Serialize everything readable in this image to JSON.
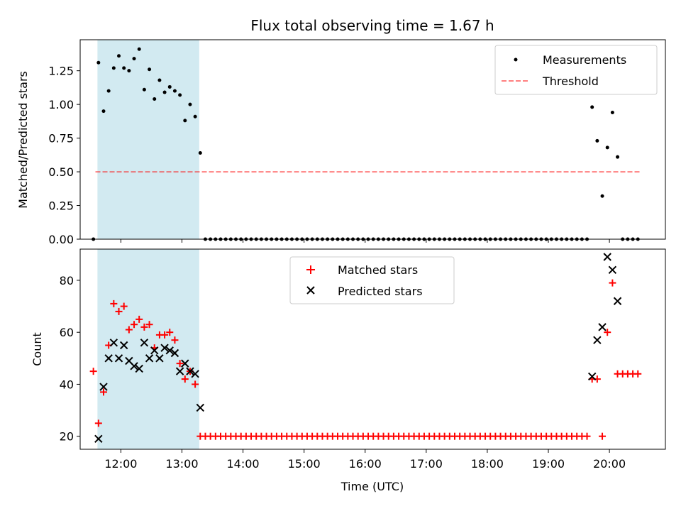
{
  "chart_data": {
    "type": "scatter",
    "title": "Flux total observing time = 1.67 h",
    "xlabel": "Time (UTC)",
    "x_unit": "hours UTC",
    "xlim": [
      "11:20",
      "20:55"
    ],
    "xticks": [
      "12:00",
      "13:00",
      "14:00",
      "15:00",
      "16:00",
      "17:00",
      "18:00",
      "19:00",
      "20:00"
    ],
    "shaded_interval": {
      "start": "11:37",
      "end": "13:17",
      "color": "#add8e6"
    },
    "panels": [
      {
        "name": "ratio",
        "ylabel": "Matched/Predicted stars",
        "ylim": [
          0,
          1.48
        ],
        "yticks": [
          "0.00",
          "0.25",
          "0.50",
          "0.75",
          "1.00",
          "1.25"
        ],
        "legend_position": "upper right",
        "legend": [
          "Measurements",
          "Threshold"
        ],
        "threshold": {
          "name": "Threshold",
          "value": 0.5,
          "x_range": [
            "11:35",
            "20:30"
          ],
          "color": "#ff0000",
          "style": "dashed"
        },
        "measurements": {
          "name": "Measurements",
          "color": "#000000",
          "x": [
            "11:33",
            "11:38",
            "11:43",
            "11:48",
            "11:53",
            "11:58",
            "12:03",
            "12:08",
            "12:13",
            "12:18",
            "12:23",
            "12:28",
            "12:33",
            "12:38",
            "12:43",
            "12:48",
            "12:53",
            "12:58",
            "13:03",
            "13:08",
            "13:13",
            "19:43",
            "19:48",
            "19:53",
            "19:58",
            "20:03",
            "20:08",
            "20:13",
            "20:18",
            "20:23",
            "20:28"
          ],
          "y": [
            0.0,
            1.31,
            0.95,
            1.1,
            1.27,
            1.36,
            1.27,
            1.25,
            1.34,
            1.41,
            1.11,
            1.26,
            1.04,
            1.18,
            1.09,
            1.13,
            1.1,
            1.07,
            0.88,
            1.0,
            0.91,
            0.98,
            0.73,
            0.32,
            0.68,
            0.94,
            0.61,
            0.0,
            0.0,
            0.0,
            0.0
          ],
          "extra_point": {
            "x": "13:18",
            "y": 0.64
          },
          "zero_run": {
            "from": "13:23",
            "to": "19:38",
            "step_minutes": 5,
            "y": 0.0
          }
        }
      },
      {
        "name": "counts",
        "ylabel": "Count",
        "ylim": [
          15,
          92
        ],
        "yticks": [
          "20",
          "40",
          "60",
          "80"
        ],
        "legend_position": "upper center",
        "legend": [
          "Matched stars",
          "Predicted stars"
        ],
        "series": [
          {
            "name": "Matched stars",
            "marker": "+",
            "color": "#ff0000",
            "x": [
              "11:33",
              "11:38",
              "11:43",
              "11:48",
              "11:53",
              "11:58",
              "12:03",
              "12:08",
              "12:13",
              "12:18",
              "12:23",
              "12:28",
              "12:33",
              "12:38",
              "12:43",
              "12:48",
              "12:53",
              "12:58",
              "13:03",
              "13:08",
              "13:13",
              "13:18",
              "19:43",
              "19:48",
              "19:53",
              "19:58",
              "20:03",
              "20:08",
              "20:13",
              "20:18",
              "20:23",
              "20:28"
            ],
            "y": [
              45,
              25,
              37,
              55,
              71,
              68,
              70,
              61,
              63,
              65,
              62,
              63,
              54,
              59,
              59,
              60,
              57,
              48,
              42,
              45,
              40,
              20,
              42,
              42,
              20,
              60,
              79,
              44,
              44,
              44,
              44,
              44
            ],
            "zero_run": {
              "from": "13:23",
              "to": "19:38",
              "step_minutes": 5,
              "y": 20
            }
          },
          {
            "name": "Predicted stars",
            "marker": "x",
            "color": "#000000",
            "x": [
              "11:38",
              "11:43",
              "11:48",
              "11:53",
              "11:58",
              "12:03",
              "12:08",
              "12:13",
              "12:18",
              "12:23",
              "12:28",
              "12:33",
              "12:38",
              "12:43",
              "12:48",
              "12:53",
              "12:58",
              "13:03",
              "13:08",
              "13:13",
              "13:18",
              "19:43",
              "19:48",
              "19:53",
              "19:58",
              "20:03",
              "20:08"
            ],
            "y": [
              19,
              39,
              50,
              56,
              50,
              55,
              49,
              47,
              46,
              56,
              50,
              53,
              50,
              54,
              53,
              52,
              45,
              48,
              45,
              44,
              31,
              43,
              57,
              62,
              89,
              84,
              72
            ]
          }
        ]
      }
    ]
  }
}
